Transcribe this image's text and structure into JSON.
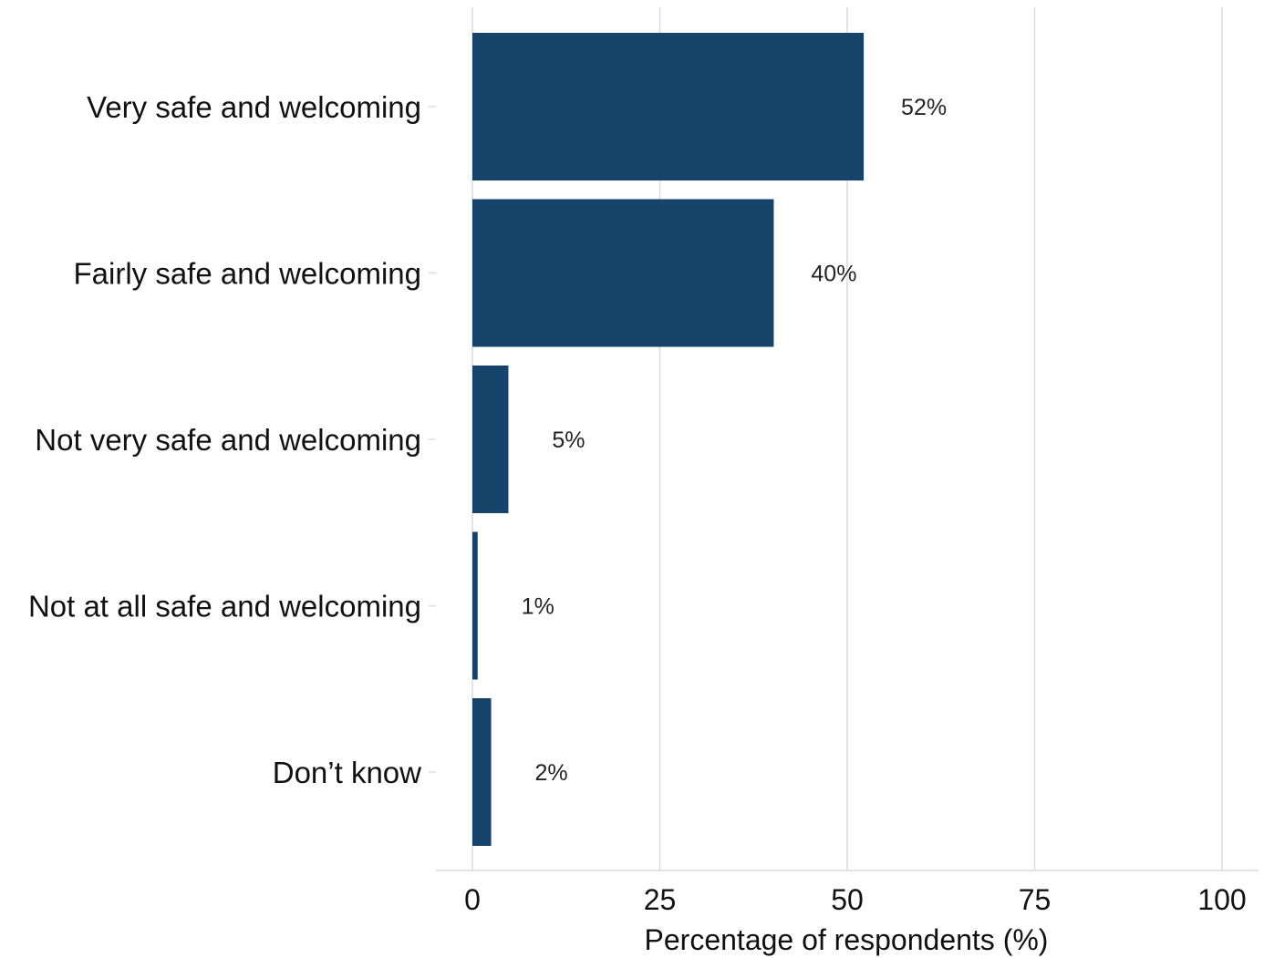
{
  "chart_data": {
    "type": "bar",
    "orientation": "horizontal",
    "categories": [
      "Very safe and welcoming",
      "Fairly safe and welcoming",
      "Not very safe and welcoming",
      "Not at all safe and welcoming",
      "Don’t know"
    ],
    "values": [
      52.2,
      40.2,
      4.8,
      0.7,
      2.5
    ],
    "data_labels": [
      "52%",
      "40%",
      "5%",
      "1%",
      "2%"
    ],
    "xlabel": "Percentage of respondents (%)",
    "ylabel": "",
    "xlim": [
      0,
      100
    ],
    "x_ticks": [
      0,
      25,
      50,
      75,
      100
    ],
    "x_tick_labels": [
      "0",
      "25",
      "50",
      "75",
      "100"
    ],
    "grid": "vertical",
    "legend": "none",
    "colors": {
      "bar": "#15436a"
    }
  }
}
